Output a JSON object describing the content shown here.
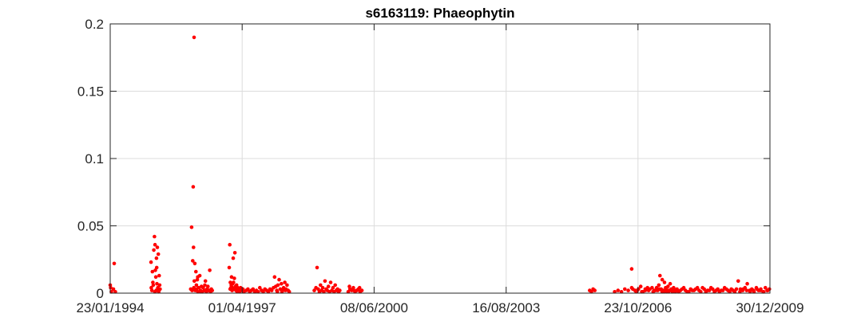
{
  "chart_data": {
    "type": "scatter",
    "title": "s6163119: Phaeophytin",
    "xlabel": "",
    "ylabel": "",
    "grid": true,
    "x_start": "23/01/1994",
    "x_end": "30/12/2009",
    "x_range_days": [
      0,
      5820
    ],
    "ylim": [
      0,
      0.2
    ],
    "xticks": [
      {
        "day": 0,
        "label": "23/01/1994"
      },
      {
        "day": 1164,
        "label": "01/04/1997"
      },
      {
        "day": 2328,
        "label": "08/06/2000"
      },
      {
        "day": 3493,
        "label": "16/08/2003"
      },
      {
        "day": 4656,
        "label": "23/10/2006"
      },
      {
        "day": 5820,
        "label": "30/12/2009"
      }
    ],
    "yticks": [
      {
        "value": 0,
        "label": "0"
      },
      {
        "value": 0.05,
        "label": "0.05"
      },
      {
        "value": 0.1,
        "label": "0.1"
      },
      {
        "value": 0.15,
        "label": "0.15"
      },
      {
        "value": 0.2,
        "label": "0.2"
      }
    ],
    "series": [
      {
        "name": "Phaeophytin",
        "marker_color": "#ff0000",
        "points": [
          [
            0,
            0.006
          ],
          [
            4,
            0.004
          ],
          [
            10,
            0.001
          ],
          [
            35,
            0.022
          ],
          [
            28,
            0.003
          ],
          [
            45,
            0.001
          ],
          [
            360,
            0.023
          ],
          [
            372,
            0.016
          ],
          [
            380,
            0.006
          ],
          [
            385,
            0.032
          ],
          [
            390,
            0.042
          ],
          [
            395,
            0.036
          ],
          [
            398,
            0.017
          ],
          [
            402,
            0.012
          ],
          [
            405,
            0.002
          ],
          [
            408,
            0.026
          ],
          [
            412,
            0.007
          ],
          [
            416,
            0.034
          ],
          [
            420,
            0.004
          ],
          [
            424,
            0.029
          ],
          [
            428,
            0.001
          ],
          [
            432,
            0.013
          ],
          [
            436,
            0.006
          ],
          [
            440,
            0.003
          ],
          [
            362,
            0.004
          ],
          [
            368,
            0.002
          ],
          [
            376,
            0.008
          ],
          [
            394,
            0.001
          ],
          [
            410,
            0.019
          ],
          [
            430,
            0.002
          ],
          [
            710,
            0.003
          ],
          [
            718,
            0.049
          ],
          [
            722,
            0.002
          ],
          [
            728,
            0.024
          ],
          [
            732,
            0.079
          ],
          [
            735,
            0.034
          ],
          [
            738,
            0.004
          ],
          [
            740,
            0.19
          ],
          [
            742,
            0.009
          ],
          [
            746,
            0.022
          ],
          [
            750,
            0.002
          ],
          [
            756,
            0.016
          ],
          [
            762,
            0.003
          ],
          [
            768,
            0.01
          ],
          [
            774,
            0.001
          ],
          [
            780,
            0.004
          ],
          [
            790,
            0.013
          ],
          [
            796,
            0.002
          ],
          [
            805,
            0.005
          ],
          [
            812,
            0.001
          ],
          [
            820,
            0.004
          ],
          [
            830,
            0.002
          ],
          [
            840,
            0.009
          ],
          [
            848,
            0.001
          ],
          [
            855,
            0.003
          ],
          [
            862,
            0.005
          ],
          [
            870,
            0.002
          ],
          [
            878,
            0.017
          ],
          [
            885,
            0.001
          ],
          [
            892,
            0.003
          ],
          [
            900,
            0.002
          ],
          [
            760,
            0.006
          ],
          [
            772,
            0.012
          ],
          [
            800,
            0.001
          ],
          [
            835,
            0.006
          ],
          [
            1050,
            0.019
          ],
          [
            1055,
            0.036
          ],
          [
            1060,
            0.008
          ],
          [
            1065,
            0.004
          ],
          [
            1070,
            0.012
          ],
          [
            1075,
            0.002
          ],
          [
            1080,
            0.007
          ],
          [
            1085,
            0.026
          ],
          [
            1090,
            0.003
          ],
          [
            1095,
            0.011
          ],
          [
            1100,
            0.03
          ],
          [
            1105,
            0.005
          ],
          [
            1110,
            0.002
          ],
          [
            1115,
            0.006
          ],
          [
            1120,
            0.001
          ],
          [
            1125,
            0.004
          ],
          [
            1130,
            0.002
          ],
          [
            1135,
            0.003
          ],
          [
            1140,
            0.001
          ],
          [
            1150,
            0.004
          ],
          [
            1160,
            0.002
          ],
          [
            1170,
            0.003
          ],
          [
            1180,
            0.001
          ],
          [
            1058,
            0.003
          ],
          [
            1068,
            0.006
          ],
          [
            1078,
            0.004
          ],
          [
            1088,
            0.008
          ],
          [
            1098,
            0.003
          ],
          [
            1108,
            0.004
          ],
          [
            1118,
            0.003
          ],
          [
            1200,
            0.002
          ],
          [
            1215,
            0.003
          ],
          [
            1230,
            0.001
          ],
          [
            1245,
            0.002
          ],
          [
            1260,
            0.003
          ],
          [
            1275,
            0.001
          ],
          [
            1290,
            0.002
          ],
          [
            1305,
            0.001
          ],
          [
            1320,
            0.004
          ],
          [
            1335,
            0.002
          ],
          [
            1350,
            0.001
          ],
          [
            1365,
            0.003
          ],
          [
            1380,
            0.002
          ],
          [
            1395,
            0.001
          ],
          [
            1410,
            0.003
          ],
          [
            1425,
            0.002
          ],
          [
            1440,
            0.004
          ],
          [
            1450,
            0.012
          ],
          [
            1460,
            0.005
          ],
          [
            1470,
            0.002
          ],
          [
            1480,
            0.006
          ],
          [
            1490,
            0.01
          ],
          [
            1500,
            0.003
          ],
          [
            1510,
            0.007
          ],
          [
            1520,
            0.002
          ],
          [
            1530,
            0.004
          ],
          [
            1540,
            0.008
          ],
          [
            1550,
            0.003
          ],
          [
            1560,
            0.006
          ],
          [
            1570,
            0.002
          ],
          [
            1580,
            0.001
          ],
          [
            1475,
            0.001
          ],
          [
            1515,
            0.001
          ],
          [
            1545,
            0.002
          ],
          [
            1800,
            0.002
          ],
          [
            1815,
            0.004
          ],
          [
            1825,
            0.019
          ],
          [
            1835,
            0.003
          ],
          [
            1845,
            0.001
          ],
          [
            1855,
            0.006
          ],
          [
            1865,
            0.002
          ],
          [
            1875,
            0.004
          ],
          [
            1885,
            0.001
          ],
          [
            1895,
            0.009
          ],
          [
            1905,
            0.003
          ],
          [
            1915,
            0.002
          ],
          [
            1925,
            0.005
          ],
          [
            1935,
            0.001
          ],
          [
            1945,
            0.008
          ],
          [
            1955,
            0.002
          ],
          [
            1965,
            0.004
          ],
          [
            1975,
            0.001
          ],
          [
            1985,
            0.006
          ],
          [
            1995,
            0.002
          ],
          [
            2005,
            0.003
          ],
          [
            2015,
            0.001
          ],
          [
            2025,
            0.002
          ],
          [
            2100,
            0.001
          ],
          [
            2115,
            0.003
          ],
          [
            2130,
            0.002
          ],
          [
            2145,
            0.004
          ],
          [
            2160,
            0.001
          ],
          [
            2175,
            0.002
          ],
          [
            2190,
            0.003
          ],
          [
            2205,
            0.001
          ],
          [
            2220,
            0.002
          ],
          [
            2110,
            0.005
          ],
          [
            2150,
            0.002
          ],
          [
            2200,
            0.004
          ],
          [
            4230,
            0.002
          ],
          [
            4245,
            0.001
          ],
          [
            4260,
            0.003
          ],
          [
            4275,
            0.002
          ],
          [
            4450,
            0.001
          ],
          [
            4480,
            0.002
          ],
          [
            4510,
            0.001
          ],
          [
            4540,
            0.003
          ],
          [
            4570,
            0.002
          ],
          [
            4600,
            0.004
          ],
          [
            4630,
            0.002
          ],
          [
            4660,
            0.003
          ],
          [
            4690,
            0.001
          ],
          [
            4720,
            0.003
          ],
          [
            4750,
            0.002
          ],
          [
            4780,
            0.004
          ],
          [
            4810,
            0.002
          ],
          [
            4840,
            0.003
          ],
          [
            4870,
            0.001
          ],
          [
            4900,
            0.002
          ],
          [
            4600,
            0.018
          ],
          [
            4640,
            0.001
          ],
          [
            4680,
            0.005
          ],
          [
            4720,
            0.002
          ],
          [
            4760,
            0.003
          ],
          [
            4800,
            0.002
          ],
          [
            4820,
            0.004
          ],
          [
            4840,
            0.006
          ],
          [
            4850,
            0.013
          ],
          [
            4860,
            0.003
          ],
          [
            4870,
            0.01
          ],
          [
            4880,
            0.002
          ],
          [
            4890,
            0.008
          ],
          [
            4900,
            0.004
          ],
          [
            4910,
            0.001
          ],
          [
            4920,
            0.005
          ],
          [
            4930,
            0.002
          ],
          [
            4940,
            0.007
          ],
          [
            4950,
            0.003
          ],
          [
            4960,
            0.001
          ],
          [
            4970,
            0.004
          ],
          [
            4980,
            0.002
          ],
          [
            5000,
            0.003
          ],
          [
            5030,
            0.002
          ],
          [
            5060,
            0.004
          ],
          [
            5090,
            0.001
          ],
          [
            5120,
            0.003
          ],
          [
            5150,
            0.002
          ],
          [
            5180,
            0.004
          ],
          [
            5210,
            0.001
          ],
          [
            5240,
            0.003
          ],
          [
            5270,
            0.002
          ],
          [
            5300,
            0.004
          ],
          [
            5330,
            0.001
          ],
          [
            5360,
            0.003
          ],
          [
            5390,
            0.002
          ],
          [
            5420,
            0.004
          ],
          [
            5450,
            0.002
          ],
          [
            5480,
            0.003
          ],
          [
            5510,
            0.001
          ],
          [
            5540,
            0.009
          ],
          [
            5560,
            0.003
          ],
          [
            5580,
            0.002
          ],
          [
            5600,
            0.004
          ],
          [
            5620,
            0.007
          ],
          [
            5640,
            0.002
          ],
          [
            5660,
            0.003
          ],
          [
            5680,
            0.001
          ],
          [
            5700,
            0.004
          ],
          [
            5720,
            0.002
          ],
          [
            5740,
            0.003
          ],
          [
            5760,
            0.001
          ],
          [
            5780,
            0.004
          ],
          [
            5800,
            0.002
          ],
          [
            5815,
            0.003
          ],
          [
            5015,
            0.001
          ],
          [
            5045,
            0.003
          ],
          [
            5075,
            0.002
          ],
          [
            5105,
            0.001
          ],
          [
            5135,
            0.002
          ],
          [
            5165,
            0.003
          ],
          [
            5195,
            0.002
          ],
          [
            5225,
            0.004
          ],
          [
            5255,
            0.001
          ],
          [
            5285,
            0.002
          ],
          [
            5315,
            0.003
          ],
          [
            5345,
            0.002
          ],
          [
            5375,
            0.001
          ],
          [
            5405,
            0.002
          ],
          [
            5435,
            0.003
          ],
          [
            5465,
            0.001
          ],
          [
            5495,
            0.002
          ],
          [
            5525,
            0.003
          ],
          [
            5555,
            0.001
          ],
          [
            5585,
            0.003
          ],
          [
            5615,
            0.002
          ],
          [
            5645,
            0.001
          ],
          [
            5675,
            0.002
          ],
          [
            5705,
            0.003
          ],
          [
            5735,
            0.002
          ],
          [
            5765,
            0.001
          ],
          [
            5795,
            0.002
          ],
          [
            4610,
            0.003
          ],
          [
            4650,
            0.002
          ],
          [
            4700,
            0.001
          ],
          [
            4740,
            0.004
          ],
          [
            4790,
            0.001
          ],
          [
            4830,
            0.002
          ],
          [
            4845,
            0.003
          ],
          [
            4865,
            0.002
          ],
          [
            4885,
            0.001
          ],
          [
            4905,
            0.003
          ],
          [
            4925,
            0.001
          ],
          [
            4945,
            0.002
          ],
          [
            4965,
            0.003
          ],
          [
            4985,
            0.001
          ],
          [
            5005,
            0.002
          ]
        ]
      }
    ]
  }
}
